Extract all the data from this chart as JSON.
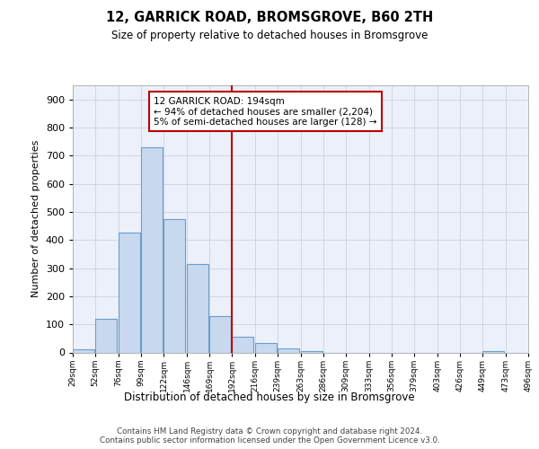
{
  "title": "12, GARRICK ROAD, BROMSGROVE, B60 2TH",
  "subtitle": "Size of property relative to detached houses in Bromsgrove",
  "xlabel": "Distribution of detached houses by size in Bromsgrove",
  "ylabel": "Number of detached properties",
  "property_line_x": 192,
  "annotation_line1": "12 GARRICK ROAD: 194sqm",
  "annotation_line2": "← 94% of detached houses are smaller (2,204)",
  "annotation_line3": "5% of semi-detached houses are larger (128) →",
  "bar_color": "#C8D9EF",
  "bar_edge_color": "#6B9EC8",
  "line_color": "#BB0000",
  "background_color": "#EBF0FA",
  "grid_color": "#C8CCDA",
  "bins": [
    29,
    52,
    76,
    99,
    122,
    146,
    169,
    192,
    216,
    239,
    263,
    286,
    309,
    333,
    356,
    379,
    403,
    426,
    449,
    473,
    496
  ],
  "counts": [
    12,
    120,
    425,
    730,
    475,
    315,
    130,
    55,
    35,
    15,
    5,
    0,
    0,
    0,
    0,
    0,
    0,
    0,
    5,
    0
  ],
  "ylim_max": 950,
  "yticks": [
    0,
    100,
    200,
    300,
    400,
    500,
    600,
    700,
    800,
    900
  ],
  "footer_line1": "Contains HM Land Registry data © Crown copyright and database right 2024.",
  "footer_line2": "Contains public sector information licensed under the Open Government Licence v3.0."
}
